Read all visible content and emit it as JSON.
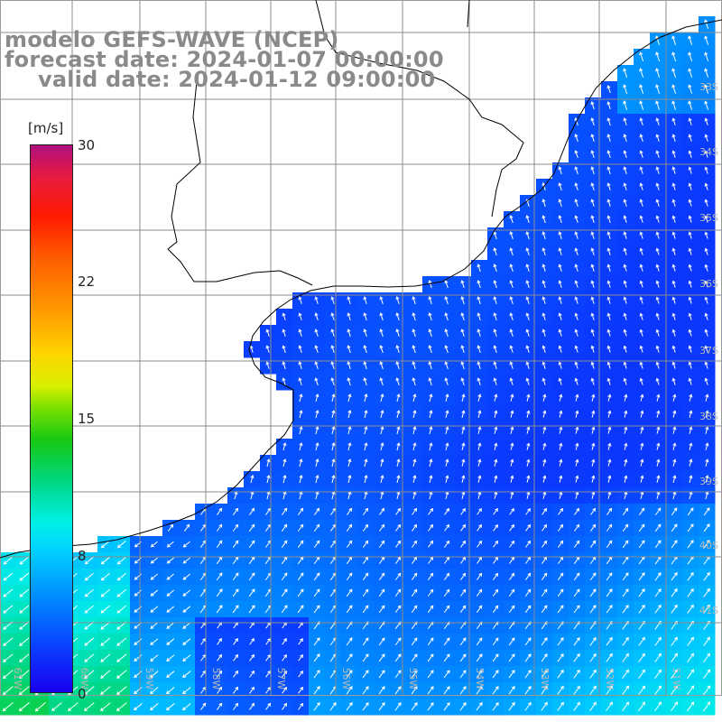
{
  "title": {
    "line1": "modelo GEFS-WAVE (NCEP)",
    "line2": "forecast date: 2024-01-07 00:00:00",
    "line3": "valid date: 2024-01-12 09:00:00"
  },
  "colorbar": {
    "unit": "[m/s]",
    "ticks": [
      "30",
      "22",
      "15",
      "8",
      "0"
    ],
    "tick_values": [
      30,
      22,
      15,
      8,
      0
    ],
    "colors": [
      "#1a00ee",
      "#0a3cff",
      "#0088ff",
      "#00d2ff",
      "#00f0e6",
      "#00d88a",
      "#14c814",
      "#7be000",
      "#ffd400",
      "#ff9800",
      "#ff6000",
      "#ff1a00",
      "#e81a3e",
      "#b0107e"
    ]
  },
  "map": {
    "region": "South Atlantic off southern Brazil / Uruguay / Rio de la Plata",
    "field": "10 m wind speed and direction",
    "lat_labels": [
      "33S",
      "34S",
      "35S",
      "36S",
      "37S",
      "38S",
      "39S",
      "40S",
      "41S"
    ],
    "lon_labels": [
      "61W",
      "60W",
      "59W",
      "58W",
      "57W",
      "56W",
      "55W",
      "54W",
      "53W",
      "52W",
      "51W"
    ],
    "land_color": "#ffffff",
    "coast_color": "#000000",
    "grid_color": "#8c8c8c"
  }
}
